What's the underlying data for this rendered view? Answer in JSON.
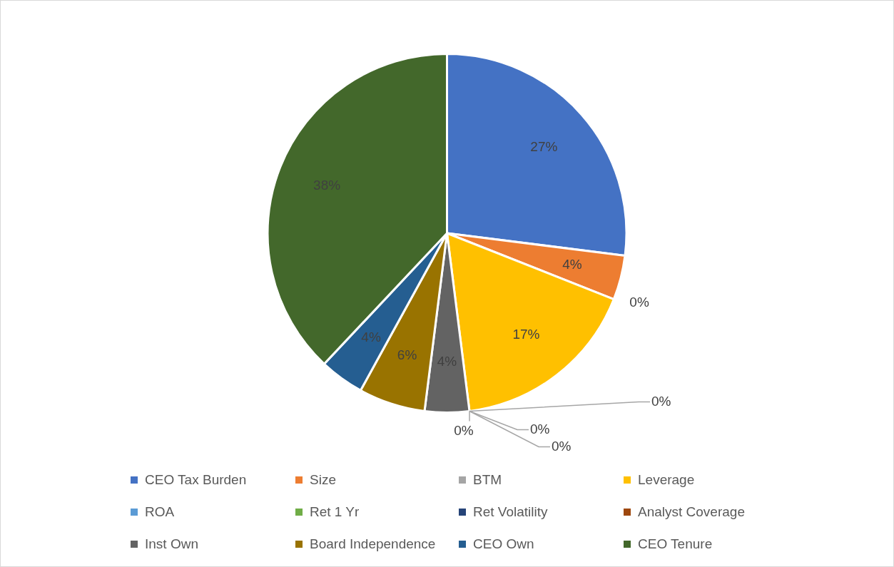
{
  "chart_data": {
    "type": "pie",
    "categories": [
      "CEO Tax Burden",
      "Size",
      "BTM",
      "Leverage",
      "ROA",
      "Ret 1 Yr",
      "Ret Volatility",
      "Analyst Coverage",
      "Inst Own",
      "Board Independence",
      "CEO Own",
      "CEO Tenure"
    ],
    "values": [
      27,
      4,
      0,
      17,
      0,
      0,
      0,
      0,
      4,
      6,
      4,
      38
    ],
    "colors": [
      "#4472c4",
      "#ed7d31",
      "#a5a5a5",
      "#ffc000",
      "#5b9bd5",
      "#70ad47",
      "#264478",
      "#9e480e",
      "#636363",
      "#997300",
      "#255e91",
      "#43682b"
    ],
    "value_labels": [
      "27%",
      "4%",
      "0%",
      "17%",
      "0%",
      "0%",
      "0%",
      "0%",
      "4%",
      "6%",
      "4%",
      "38%"
    ],
    "legend": "bottom"
  }
}
